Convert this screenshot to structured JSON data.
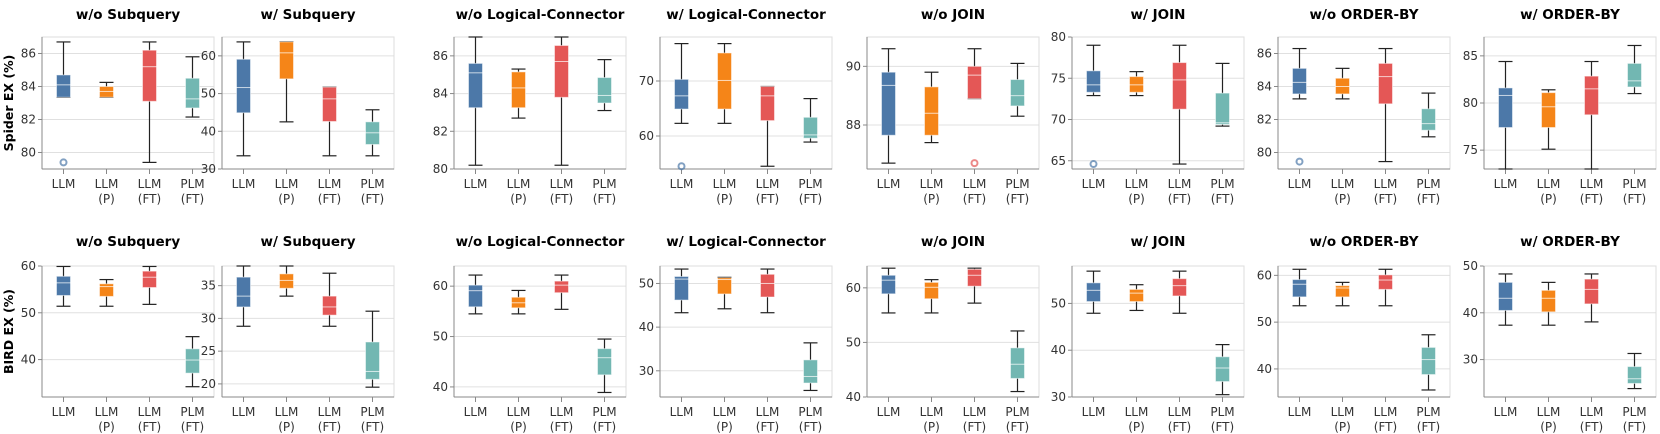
{
  "chart_data": {
    "type": "boxplot",
    "categories": [
      [
        "LLM"
      ],
      [
        "LLM",
        "(P)"
      ],
      [
        "LLM",
        "(FT)"
      ],
      [
        "PLM",
        "(FT)"
      ]
    ],
    "colors": [
      "#4c78a8",
      "#f58518",
      "#e45756",
      "#72b7b2"
    ],
    "box_format": "[min, q1, median, q3, max]",
    "rows": [
      {
        "ylabel": "Spider EX (%)",
        "panels": [
          {
            "title": "w/o Subquery",
            "ylim": [
              79,
              87
            ],
            "ticks": [
              80,
              82,
              84,
              86
            ],
            "boxes": [
              [
                83.35,
                83.35,
                84.1,
                84.7,
                86.7
              ],
              [
                83.35,
                83.35,
                83.7,
                84.0,
                84.25
              ],
              [
                79.4,
                83.1,
                85.2,
                86.2,
                86.7
              ],
              [
                82.15,
                82.7,
                83.25,
                84.5,
                85.8
              ]
            ],
            "outliers": [
              [
                79.4
              ],
              [],
              [],
              []
            ]
          },
          {
            "title": "w/ Subquery",
            "ylim": [
              30,
              65
            ],
            "ticks": [
              30,
              40,
              50,
              60
            ],
            "boxes": [
              [
                33.5,
                44.9,
                51.6,
                59.1,
                63.7
              ],
              [
                42.5,
                53.9,
                60.8,
                63.7,
                63.7
              ],
              [
                33.5,
                42.6,
                48.6,
                51.7,
                51.7
              ],
              [
                33.5,
                36.5,
                39.6,
                42.5,
                45.7
              ]
            ],
            "outliers": [
              [],
              [],
              [],
              []
            ]
          },
          {
            "title": "w/o Logical-Connector",
            "ylim": [
              80,
              87
            ],
            "ticks": [
              80,
              82,
              84,
              86
            ],
            "boxes": [
              [
                80.2,
                83.25,
                85.1,
                85.6,
                87.0
              ],
              [
                82.7,
                83.25,
                84.3,
                85.15,
                85.3
              ],
              [
                80.2,
                83.8,
                85.7,
                86.55,
                87.0
              ],
              [
                83.1,
                83.5,
                83.9,
                84.85,
                85.8
              ]
            ],
            "outliers": [
              [],
              [],
              [],
              []
            ]
          },
          {
            "title": "w/ Logical-Connector",
            "ylim": [
              54,
              78
            ],
            "ticks": [
              60,
              70
            ],
            "boxes": [
              [
                62.3,
                64.9,
                67.3,
                70.3,
                76.8
              ],
              [
                62.3,
                64.9,
                70.1,
                75.1,
                76.8
              ],
              [
                54.5,
                62.8,
                67.3,
                69.0,
                69.0
              ],
              [
                58.9,
                59.6,
                60.2,
                63.4,
                66.8
              ]
            ],
            "outliers": [
              [
                54.5
              ],
              [],
              [],
              []
            ]
          },
          {
            "title": "w/o JOIN",
            "ylim": [
              86.5,
              91
            ],
            "ticks": [
              88,
              90
            ],
            "boxes": [
              [
                86.7,
                87.65,
                89.35,
                89.8,
                90.6
              ],
              [
                87.4,
                87.65,
                88.4,
                89.3,
                89.8
              ],
              [
                88.9,
                88.9,
                89.7,
                90.0,
                90.6
              ],
              [
                88.3,
                88.65,
                89.0,
                89.55,
                90.1
              ]
            ],
            "outliers": [
              [],
              [],
              [
                86.7
              ],
              []
            ]
          },
          {
            "title": "w/ JOIN",
            "ylim": [
              64,
              80
            ],
            "ticks": [
              65,
              70,
              75,
              80
            ],
            "boxes": [
              [
                72.9,
                73.3,
                74.2,
                75.9,
                79.0
              ],
              [
                72.9,
                73.3,
                74.2,
                75.2,
                75.8
              ],
              [
                64.6,
                71.25,
                74.8,
                76.9,
                79.0
              ],
              [
                69.2,
                69.4,
                69.6,
                73.2,
                76.8
              ]
            ],
            "outliers": [
              [
                64.6
              ],
              [],
              [],
              []
            ]
          },
          {
            "title": "w/o ORDER-BY",
            "ylim": [
              79,
              87
            ],
            "ticks": [
              80,
              82,
              84,
              86
            ],
            "boxes": [
              [
                83.25,
                83.55,
                84.25,
                85.1,
                86.3
              ],
              [
                83.25,
                83.55,
                84.0,
                84.5,
                85.1
              ],
              [
                79.45,
                82.95,
                84.6,
                85.4,
                86.3
              ],
              [
                80.95,
                81.35,
                81.75,
                82.65,
                83.6
              ]
            ],
            "outliers": [
              [
                79.45
              ],
              [],
              [],
              []
            ]
          },
          {
            "title": "w/ ORDER-BY",
            "ylim": [
              73,
              87
            ],
            "ticks": [
              75,
              80,
              85
            ],
            "boxes": [
              [
                73.0,
                77.4,
                80.8,
                81.6,
                84.4
              ],
              [
                75.1,
                77.4,
                79.6,
                81.1,
                81.4
              ],
              [
                73.0,
                78.75,
                81.5,
                82.85,
                84.4
              ],
              [
                81.0,
                81.7,
                82.35,
                84.2,
                86.1
              ]
            ],
            "outliers": [
              [],
              [],
              [],
              []
            ]
          }
        ]
      },
      {
        "ylabel": "BIRD EX (%)",
        "panels": [
          {
            "title": "w/o Subquery",
            "ylim": [
              32,
              60
            ],
            "ticks": [
              40,
              50,
              60
            ],
            "boxes": [
              [
                51.4,
                53.7,
                56.4,
                57.8,
                59.9
              ],
              [
                51.4,
                53.5,
                55.6,
                56.2,
                57.1
              ],
              [
                51.8,
                55.4,
                57.6,
                58.9,
                59.9
              ],
              [
                34.2,
                37.1,
                39.9,
                42.3,
                44.9
              ]
            ],
            "outliers": [
              [],
              [],
              [],
              []
            ]
          },
          {
            "title": "w/ Subquery",
            "ylim": [
              18,
              38
            ],
            "ticks": [
              20,
              25,
              30,
              35
            ],
            "boxes": [
              [
                28.8,
                31.75,
                33.4,
                36.3,
                38.0
              ],
              [
                33.4,
                34.6,
                35.8,
                36.8,
                38.0
              ],
              [
                28.8,
                30.5,
                31.75,
                33.4,
                36.9
              ],
              [
                19.5,
                20.7,
                21.9,
                26.4,
                31.1
              ]
            ],
            "outliers": [
              [],
              [],
              [],
              []
            ]
          },
          {
            "title": "w/o Logical-Connector",
            "ylim": [
              38,
              64
            ],
            "ticks": [
              40,
              50,
              60
            ],
            "boxes": [
              [
                54.5,
                55.9,
                59.1,
                60.2,
                62.2
              ],
              [
                54.5,
                55.7,
                56.7,
                57.8,
                59.15
              ],
              [
                55.4,
                58.7,
                60.2,
                61.0,
                62.2
              ],
              [
                38.9,
                42.4,
                45.8,
                47.6,
                49.5
              ]
            ],
            "outliers": [
              [],
              [],
              [],
              []
            ]
          },
          {
            "title": "w/ Logical-Connector",
            "ylim": [
              24,
              54
            ],
            "ticks": [
              30,
              40,
              50
            ],
            "boxes": [
              [
                43.3,
                46.2,
                51.0,
                51.6,
                53.3
              ],
              [
                44.2,
                47.6,
                50.9,
                51.3,
                51.4
              ],
              [
                43.3,
                46.9,
                50.0,
                52.1,
                53.3
              ],
              [
                25.5,
                27.2,
                28.7,
                32.5,
                36.4
              ]
            ],
            "outliers": [
              [],
              [],
              [],
              []
            ]
          },
          {
            "title": "w/o JOIN",
            "ylim": [
              40,
              64
            ],
            "ticks": [
              40,
              50,
              60
            ],
            "boxes": [
              [
                55.4,
                58.9,
                61.4,
                62.3,
                63.6
              ],
              [
                55.4,
                58.0,
                60.1,
                61.0,
                61.5
              ],
              [
                57.2,
                60.3,
                62.3,
                63.4,
                63.6
              ],
              [
                41.0,
                43.4,
                46.0,
                49.0,
                52.1
              ]
            ],
            "outliers": [
              [],
              [],
              [],
              []
            ]
          },
          {
            "title": "w/ JOIN",
            "ylim": [
              30,
              58
            ],
            "ticks": [
              30,
              40,
              50
            ],
            "boxes": [
              [
                47.9,
                50.4,
                52.8,
                54.4,
                56.9
              ],
              [
                48.5,
                50.4,
                52.2,
                53.0,
                54.0
              ],
              [
                47.9,
                51.6,
                53.8,
                55.3,
                56.9
              ],
              [
                30.5,
                33.3,
                36.2,
                38.6,
                41.2
              ]
            ],
            "outliers": [
              [],
              [],
              [],
              []
            ]
          },
          {
            "title": "w/o ORDER-BY",
            "ylim": [
              34,
              62
            ],
            "ticks": [
              40,
              50,
              60
            ],
            "boxes": [
              [
                53.5,
                55.4,
                58.1,
                59.1,
                61.3
              ],
              [
                53.5,
                55.4,
                57.3,
                57.8,
                58.5
              ],
              [
                53.5,
                57.0,
                59.0,
                60.1,
                61.3
              ],
              [
                35.5,
                38.8,
                42.0,
                44.6,
                47.3
              ]
            ],
            "outliers": [
              [],
              [],
              [],
              []
            ]
          },
          {
            "title": "w/ ORDER-BY",
            "ylim": [
              22,
              50
            ],
            "ticks": [
              30,
              40,
              50
            ],
            "boxes": [
              [
                37.35,
                40.5,
                43.1,
                46.5,
                48.3
              ],
              [
                37.35,
                40.2,
                43.1,
                44.8,
                46.5
              ],
              [
                38.05,
                41.9,
                45.0,
                47.2,
                48.3
              ],
              [
                23.8,
                24.9,
                25.9,
                28.5,
                31.3
              ]
            ],
            "outliers": [
              [],
              [],
              [],
              []
            ]
          }
        ]
      }
    ]
  }
}
